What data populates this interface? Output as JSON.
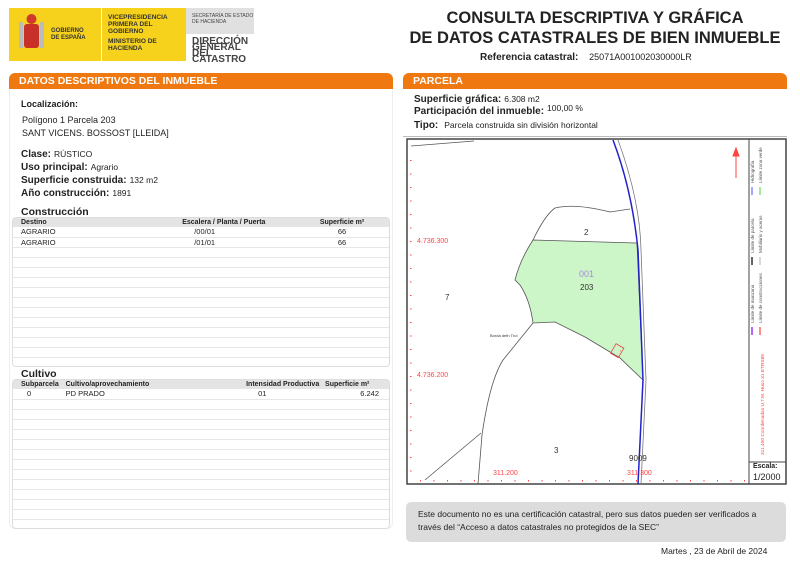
{
  "logo": {
    "gov": "GOBIERNO DE ESPAÑA",
    "vice": "VICEPRESIDENCIA PRIMERA DEL GOBIERNO",
    "min": "MINISTERIO DE HACIENDA",
    "sec": "SECRETARÍA DE ESTADO DE HACIENDA",
    "dir": "DIRECCIÓN GENERAL DEL CATASTRO"
  },
  "title": {
    "line1": "CONSULTA DESCRIPTIVA Y GRÁFICA",
    "line2": "DE DATOS CATASTRALES DE BIEN INMUEBLE",
    "ref_label": "Referencia catastral:",
    "ref_value": "25071A001002030000LR"
  },
  "left": {
    "header_a": "DATOS DESCRIPTIVOS DEL ",
    "header_b": "INMUEBLE",
    "loc_label": "Localización:",
    "loc1": "Polígono 1 Parcela 203",
    "loc2": "SANT VICENS. BOSSOST [LLEIDA]",
    "clase_label": "Clase:",
    "clase": "RÚSTICO",
    "uso_label": "Uso principal:",
    "uso": "Agrario",
    "sup_label": "Superficie construida:",
    "sup": "132 m2",
    "ano_label": "Año construcción:",
    "ano": "1891"
  },
  "construccion": {
    "title": "Construcción",
    "headers": [
      "Destino",
      "Escalera / Planta / Puerta",
      "Superficie m²"
    ],
    "rows": [
      [
        "AGRARIO",
        "/00/01",
        "66"
      ],
      [
        "AGRARIO",
        "/01/01",
        "66"
      ]
    ]
  },
  "cultivo": {
    "title": "Cultivo",
    "headers": [
      "Subparcela",
      "Cultivo/aprovechamiento",
      "Intensidad Productiva",
      "Superficie m²"
    ],
    "rows": [
      [
        "0",
        "PD PRADO",
        "01",
        "6.242"
      ]
    ]
  },
  "parcela": {
    "header": "PARCELA",
    "sup_label": "Superficie gráfica:",
    "sup": "6.308 m2",
    "part_label": "Participación del inmueble:",
    "part": "100,00 %",
    "tipo_label": "Tipo:",
    "tipo": "Parcela construida sin división horizontal"
  },
  "map": {
    "y1": "4.736.300",
    "y2": "4.736.200",
    "x1": "311.200",
    "x2": "311.300",
    "labels": {
      "p2": "2",
      "p001": "001",
      "p203": "203",
      "p7": "7",
      "p3": "3",
      "p9009": "9009",
      "borda": "Borda deth Troí"
    },
    "legend": [
      "Límite de manzana",
      "Límite de parcela",
      "Hidrografía",
      "Límite de construcciones",
      "Mobiliario y aceras",
      "Límite zona verde"
    ],
    "coords": "311.400 Coordenadas U.T.M. Huso 31 ETRS89",
    "scale_label": "Escala:",
    "scale": "1/2000",
    "colors": {
      "parcel": "#ccf5c8",
      "road": "#2222cc",
      "grid": "#ff4444",
      "manzana": "#9933ff"
    }
  },
  "note": "Este documento no es una certificación catastral, pero sus datos pueden ser verificados a través del “Acceso a datos catastrales no protegidos de la SEC”",
  "date": "Martes , 23 de Abril de 2024"
}
